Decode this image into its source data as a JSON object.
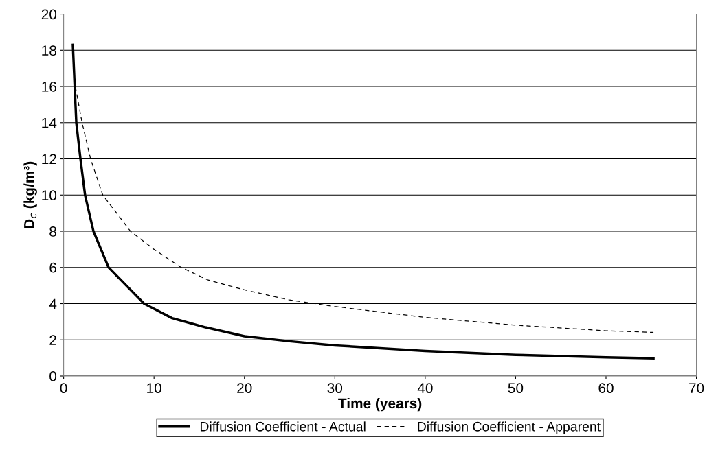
{
  "chart_data": {
    "type": "line",
    "xlabel": "Time (years)",
    "ylabel": "D$_{c}$ (kg/m³)",
    "xlim": [
      0,
      70
    ],
    "xticks": [
      0,
      10,
      20,
      30,
      40,
      50,
      60,
      70
    ],
    "ylim": [
      0,
      20
    ],
    "yticks": [
      0,
      2,
      4,
      6,
      8,
      10,
      12,
      14,
      16,
      18,
      20
    ],
    "grid": "y",
    "legend": "bottom",
    "marker": "none",
    "series": [
      {
        "name": "Diffusion Coefficient - Actual",
        "color": "#000000",
        "line_style": "solid",
        "x": [
          1.02,
          1.4,
          1.86,
          2.37,
          3.3,
          4.97,
          8.9,
          12,
          15.7,
          20,
          25,
          30,
          40,
          50,
          60,
          65.25
        ],
        "values": [
          18.3,
          14,
          12,
          10,
          8,
          6,
          4,
          3.2,
          2.69,
          2.2,
          1.92,
          1.69,
          1.38,
          1.17,
          1.03,
          0.98
        ]
      },
      {
        "name": "Diffusion Coefficient - Apparent",
        "color": "#000000",
        "line_style": "dashed",
        "x": [
          1.15,
          2.04,
          2.98,
          4.33,
          7.4,
          10,
          13,
          16,
          20,
          25,
          30,
          40,
          50,
          60,
          65.25
        ],
        "values": [
          16.4,
          14,
          12,
          10,
          8,
          7.0,
          6,
          5.3,
          4.76,
          4.2,
          3.84,
          3.24,
          2.81,
          2.5,
          2.41
        ]
      }
    ]
  }
}
